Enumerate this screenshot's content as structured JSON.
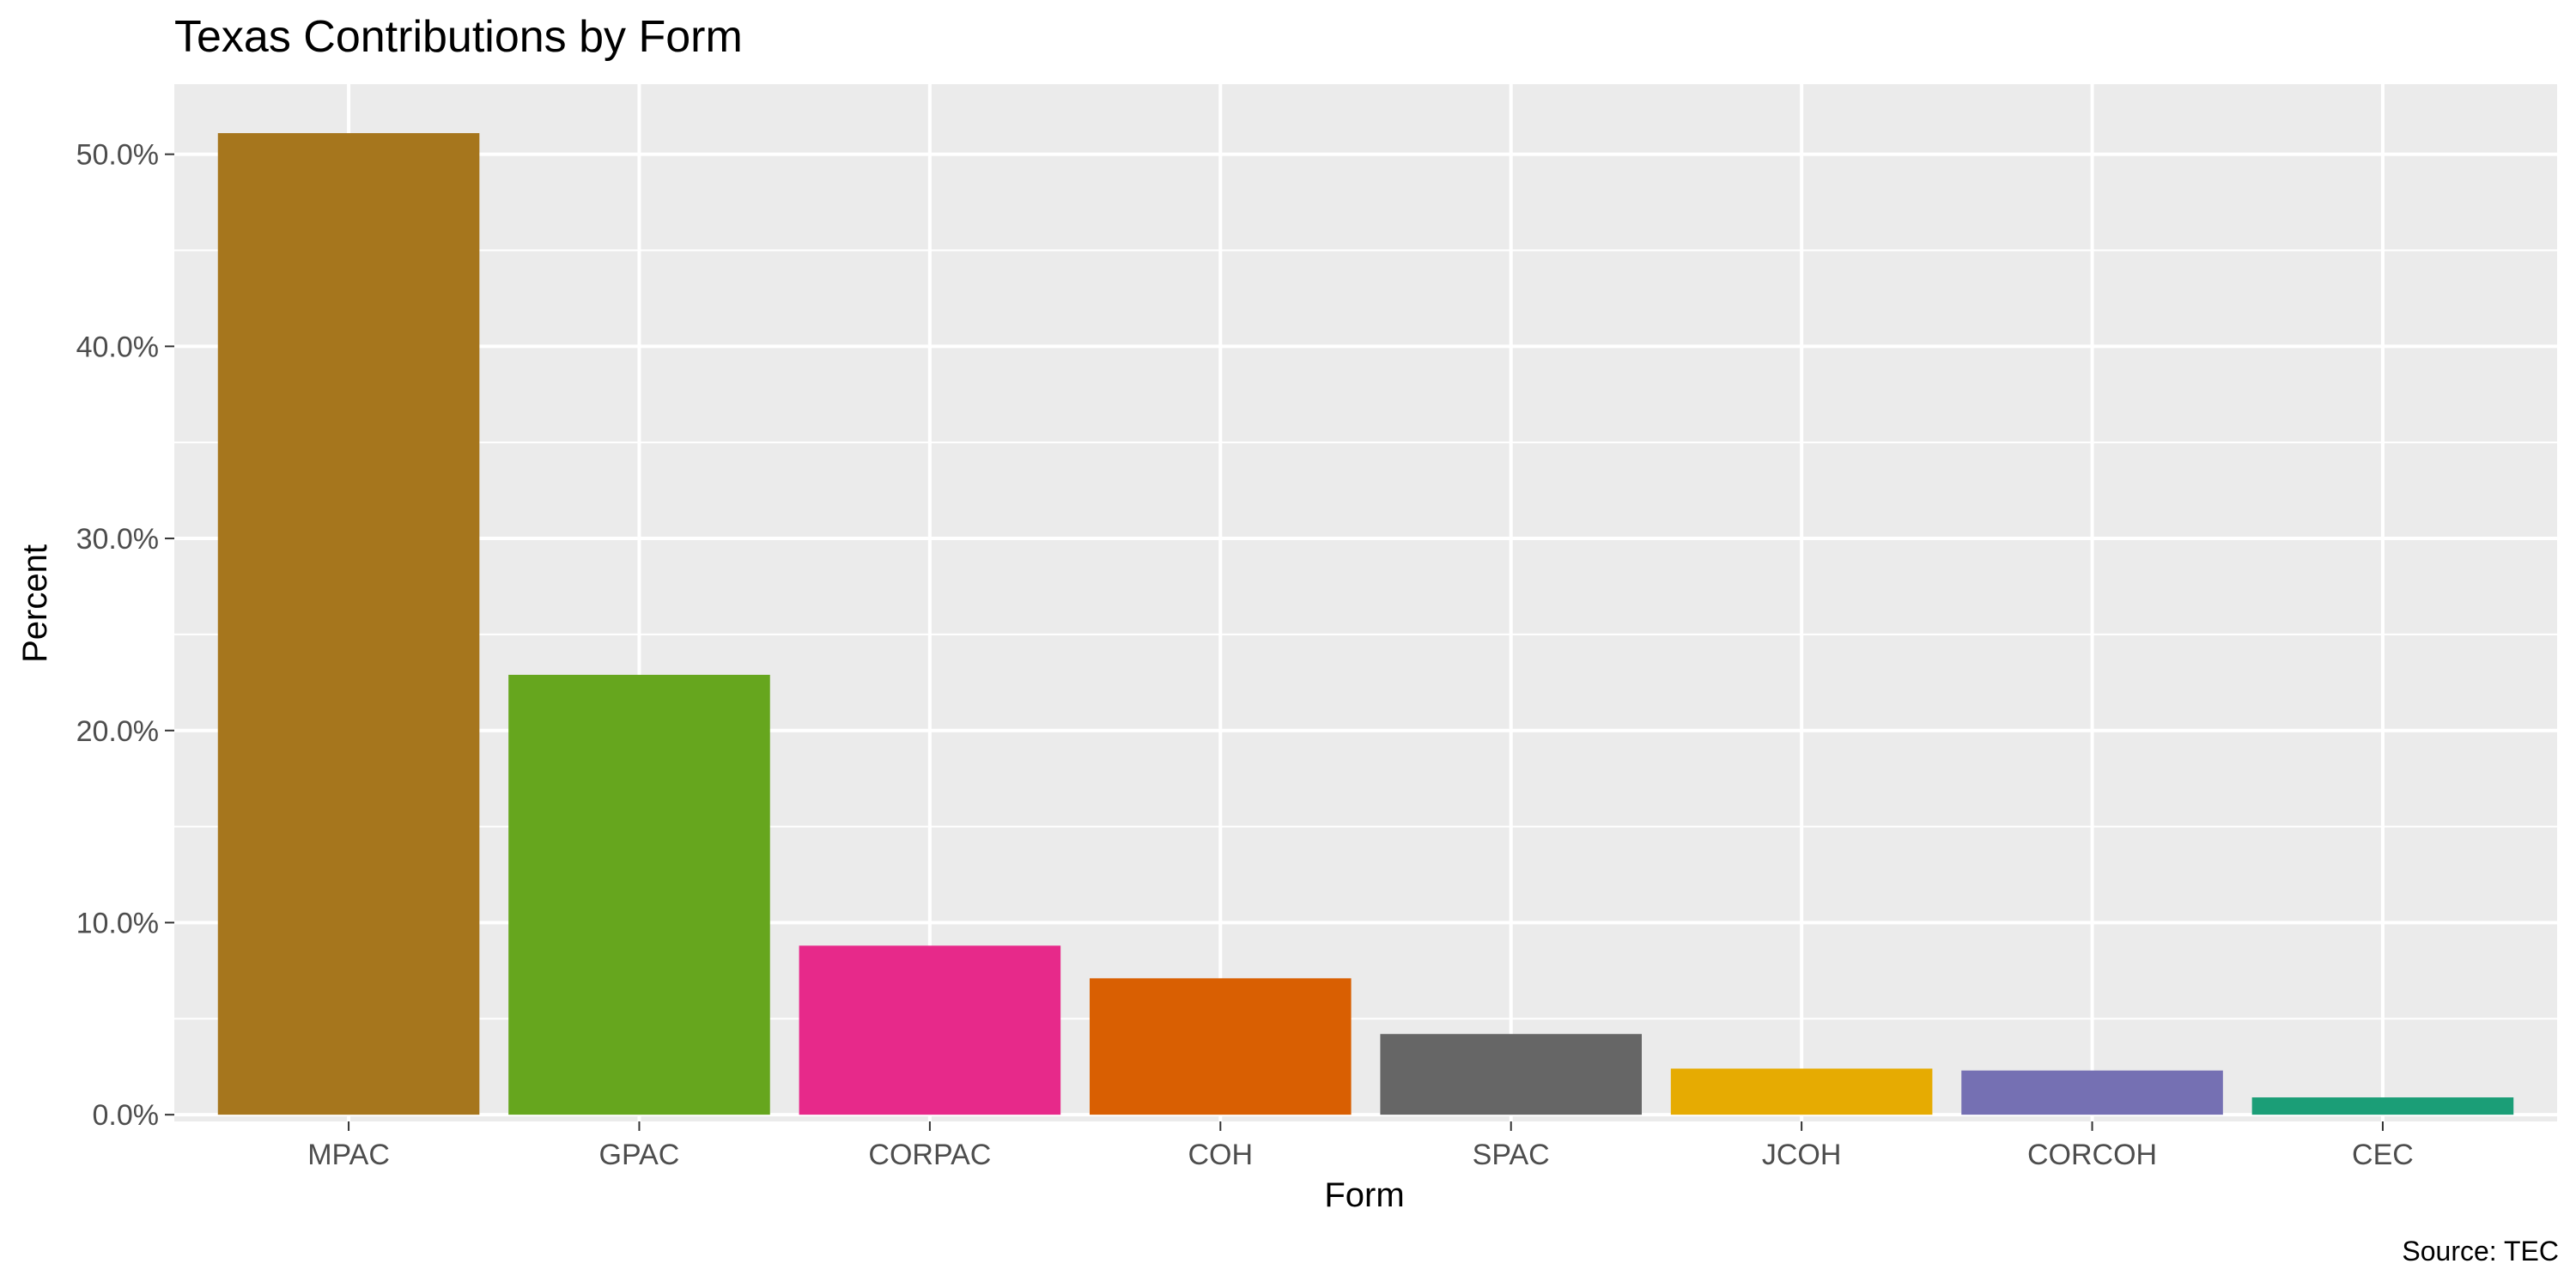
{
  "chart_data": {
    "type": "bar",
    "title": "Texas Contributions by Form",
    "xlabel": "Form",
    "ylabel": "Percent",
    "caption": "Source: TEC",
    "categories": [
      "MPAC",
      "GPAC",
      "CORPAC",
      "COH",
      "SPAC",
      "JCOH",
      "CORCOH",
      "CEC"
    ],
    "values": [
      0.511,
      0.229,
      0.088,
      0.071,
      0.042,
      0.024,
      0.023,
      0.009
    ],
    "colors": [
      "#A6761D",
      "#66A61E",
      "#E7298A",
      "#D95F02",
      "#666666",
      "#E6AB02",
      "#7570B3",
      "#1B9E77"
    ],
    "ylim": [
      -0.0035,
      0.5365
    ],
    "yticks": [
      0,
      0.1,
      0.2,
      0.3,
      0.4,
      0.5
    ],
    "ytick_labels": [
      "0.0%",
      "10.0%",
      "20.0%",
      "30.0%",
      "40.0%",
      "50.0%"
    ],
    "grid": true,
    "legend": "none",
    "panel_background": "#EBEBEB",
    "grid_color": "#FFFFFF"
  }
}
